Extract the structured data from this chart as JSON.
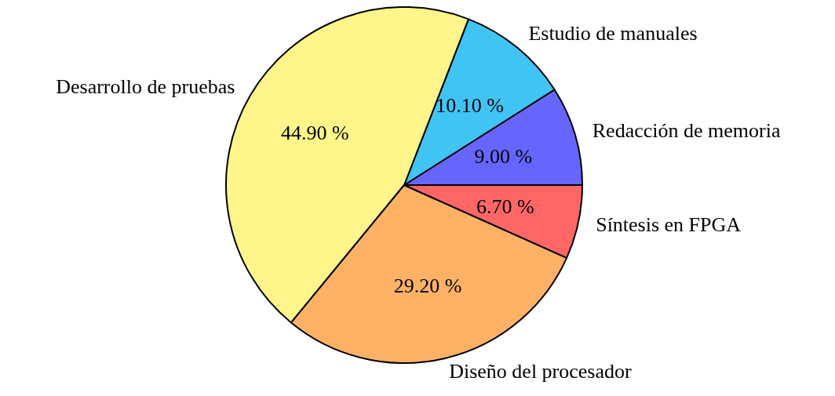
{
  "chart_data": {
    "type": "pie",
    "categories": [
      "Redacción de memoria",
      "Estudio de manuales",
      "Desarrollo de pruebas",
      "Diseño del procesador",
      "Síntesis en FPGA"
    ],
    "values": [
      9.0,
      10.1,
      44.9,
      29.2,
      6.7
    ],
    "colors": [
      "#6666ff",
      "#40c4f4",
      "#fff58a",
      "#ffb266",
      "#ff6666"
    ],
    "value_labels": [
      "9.00 %",
      "10.10 %",
      "44.90 %",
      "29.20 %",
      "6.70 %"
    ]
  }
}
